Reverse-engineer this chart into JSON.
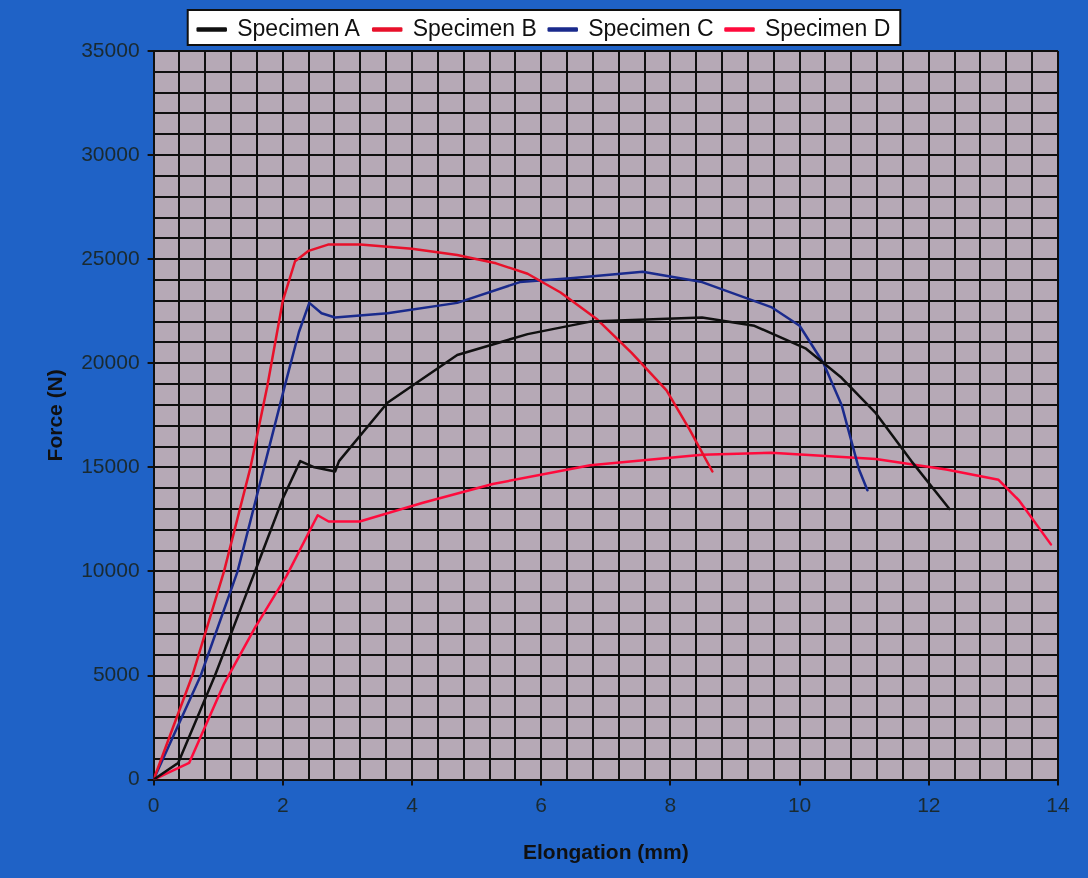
{
  "chart_data": {
    "type": "line",
    "xlabel": "Elongation (mm)",
    "ylabel": "Force (N)",
    "xlim": [
      0,
      14
    ],
    "ylim": [
      0,
      35000
    ],
    "xticks": [
      0,
      {
        "value": 0.4,
        "label": null
      },
      {
        "value": 0.8,
        "label": null
      },
      {
        "value": 1.2,
        "label": null
      },
      {
        "value": 1.6,
        "label": null
      },
      2,
      {
        "value": 2.4,
        "label": null
      },
      {
        "value": 2.8,
        "label": null
      },
      {
        "value": 3.2,
        "label": null
      },
      {
        "value": 3.6,
        "label": null
      },
      4,
      {
        "value": 4.4,
        "label": null
      },
      {
        "value": 4.8,
        "label": null
      },
      {
        "value": 5.2,
        "label": null
      },
      {
        "value": 5.6,
        "label": null
      },
      6,
      {
        "value": 6.4,
        "label": null
      },
      {
        "value": 6.8,
        "label": null
      },
      {
        "value": 7.2,
        "label": null
      },
      {
        "value": 7.6,
        "label": null
      },
      8,
      {
        "value": 8.4,
        "label": null
      },
      {
        "value": 8.8,
        "label": null
      },
      {
        "value": 9.2,
        "label": null
      },
      {
        "value": 9.6,
        "label": null
      },
      10,
      {
        "value": 10.4,
        "label": null
      },
      {
        "value": 10.8,
        "label": null
      },
      {
        "value": 11.2,
        "label": null
      },
      {
        "value": 11.6,
        "label": null
      },
      12,
      {
        "value": 12.4,
        "label": null
      },
      {
        "value": 12.8,
        "label": null
      },
      {
        "value": 13.2,
        "label": null
      },
      {
        "value": 13.6,
        "label": null
      },
      14
    ],
    "yticks": [
      0,
      {
        "value": 1000,
        "label": null
      },
      {
        "value": 2000,
        "label": null
      },
      {
        "value": 3000,
        "label": null
      },
      {
        "value": 4000,
        "label": null
      },
      5000,
      {
        "value": 6000,
        "label": null
      },
      {
        "value": 7000,
        "label": null
      },
      {
        "value": 8000,
        "label": null
      },
      {
        "value": 9000,
        "label": null
      },
      10000,
      {
        "value": 11000,
        "label": null
      },
      {
        "value": 12000,
        "label": null
      },
      {
        "value": 13000,
        "label": null
      },
      {
        "value": 14000,
        "label": null
      },
      15000,
      {
        "value": 16000,
        "label": null
      },
      {
        "value": 17000,
        "label": null
      },
      {
        "value": 18000,
        "label": null
      },
      {
        "value": 19000,
        "label": null
      },
      20000,
      {
        "value": 21000,
        "label": null
      },
      {
        "value": 22000,
        "label": null
      },
      {
        "value": 23000,
        "label": null
      },
      {
        "value": 24000,
        "label": null
      },
      25000,
      {
        "value": 26000,
        "label": null
      },
      {
        "value": 27000,
        "label": null
      },
      {
        "value": 28000,
        "label": null
      },
      {
        "value": 29000,
        "label": null
      },
      30000,
      {
        "value": 31000,
        "label": null
      },
      {
        "value": 32000,
        "label": null
      },
      {
        "value": 33000,
        "label": null
      },
      {
        "value": 34000,
        "label": null
      },
      35000
    ],
    "grid": true,
    "legend": "top",
    "marker": "none",
    "line_style": "solid",
    "series": [
      {
        "name": "Specimen A",
        "color": "#101010",
        "x": [
          0,
          0.38,
          0.95,
          1.57,
          2.0,
          2.27,
          2.49,
          2.81,
          2.87,
          3.62,
          4.7,
          5.79,
          6.76,
          8.49,
          9.3,
          10.1,
          10.65,
          11.18,
          11.73,
          12.32
        ],
        "values": [
          0,
          800,
          5000,
          10000,
          13500,
          15300,
          15000,
          14800,
          15300,
          18100,
          20400,
          21400,
          22000,
          22200,
          21800,
          20700,
          19300,
          17600,
          15300,
          13000
        ]
      },
      {
        "name": "Specimen B",
        "color": "#e8102a",
        "x": [
          0,
          0.3,
          0.6,
          1.09,
          1.5,
          1.76,
          2.0,
          2.19,
          2.4,
          2.7,
          3.2,
          4.0,
          4.7,
          5.3,
          5.79,
          6.3,
          6.87,
          7.4,
          7.94,
          8.3,
          8.65
        ],
        "values": [
          0,
          2500,
          5000,
          10000,
          15000,
          18900,
          23000,
          24900,
          25400,
          25700,
          25700,
          25500,
          25200,
          24800,
          24300,
          23400,
          22100,
          20500,
          18700,
          16800,
          14800
        ]
      },
      {
        "name": "Specimen C",
        "color": "#1a2a8c",
        "x": [
          0,
          0.73,
          1.3,
          2.03,
          2.25,
          2.41,
          2.6,
          2.81,
          3.62,
          4.7,
          5.67,
          6.5,
          7.57,
          8.49,
          9.56,
          10.0,
          10.37,
          10.65,
          10.92,
          11.05
        ],
        "values": [
          0,
          5000,
          10000,
          18900,
          21500,
          22900,
          22400,
          22200,
          22400,
          22900,
          23900,
          24100,
          24400,
          23900,
          22700,
          21800,
          20000,
          18000,
          14900,
          13900
        ]
      },
      {
        "name": "Specimen D",
        "color": "#ff0a3c",
        "x": [
          0,
          0.55,
          1.09,
          1.57,
          2.06,
          2.54,
          2.71,
          3.19,
          4.17,
          5.25,
          6.76,
          8.49,
          9.56,
          11.18,
          12.27,
          13.08,
          13.4,
          13.89
        ],
        "values": [
          0,
          800,
          4600,
          7300,
          9800,
          12700,
          12400,
          12400,
          13300,
          14200,
          15100,
          15600,
          15700,
          15400,
          14900,
          14400,
          13400,
          11300
        ]
      }
    ]
  }
}
